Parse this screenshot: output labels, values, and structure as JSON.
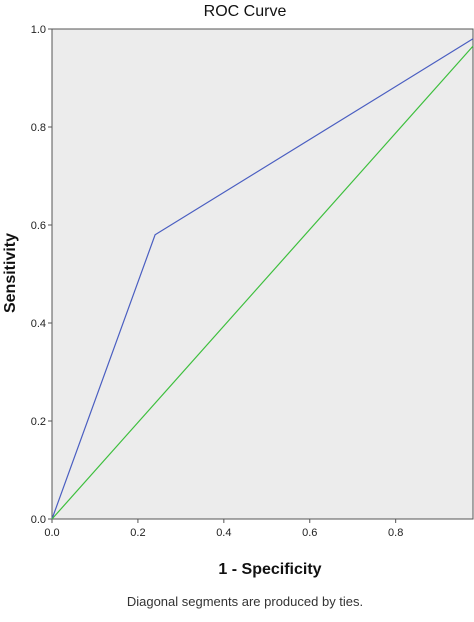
{
  "chart_data": {
    "type": "line",
    "title": "ROC Curve",
    "xlabel": "1 - Specificity",
    "ylabel": "Sensitivity",
    "xlim": [
      0,
      0.98
    ],
    "ylim": [
      0,
      1.0
    ],
    "xticks": [
      "0.0",
      "0.2",
      "0.4",
      "0.6",
      "0.8"
    ],
    "yticks": [
      "0.0",
      "0.2",
      "0.4",
      "0.6",
      "0.8",
      "1.0"
    ],
    "grid": false,
    "background": "#ececec",
    "footnote": "Diagonal segments are produced by ties.",
    "series": [
      {
        "color": "#4a5ec1",
        "x": [
          0.0,
          0.24,
          0.98
        ],
        "y": [
          0.0,
          0.58,
          0.98
        ]
      },
      {
        "color": "#3dbf3d",
        "x": [
          0.0,
          0.98
        ],
        "y": [
          0.0,
          0.965
        ]
      }
    ]
  }
}
